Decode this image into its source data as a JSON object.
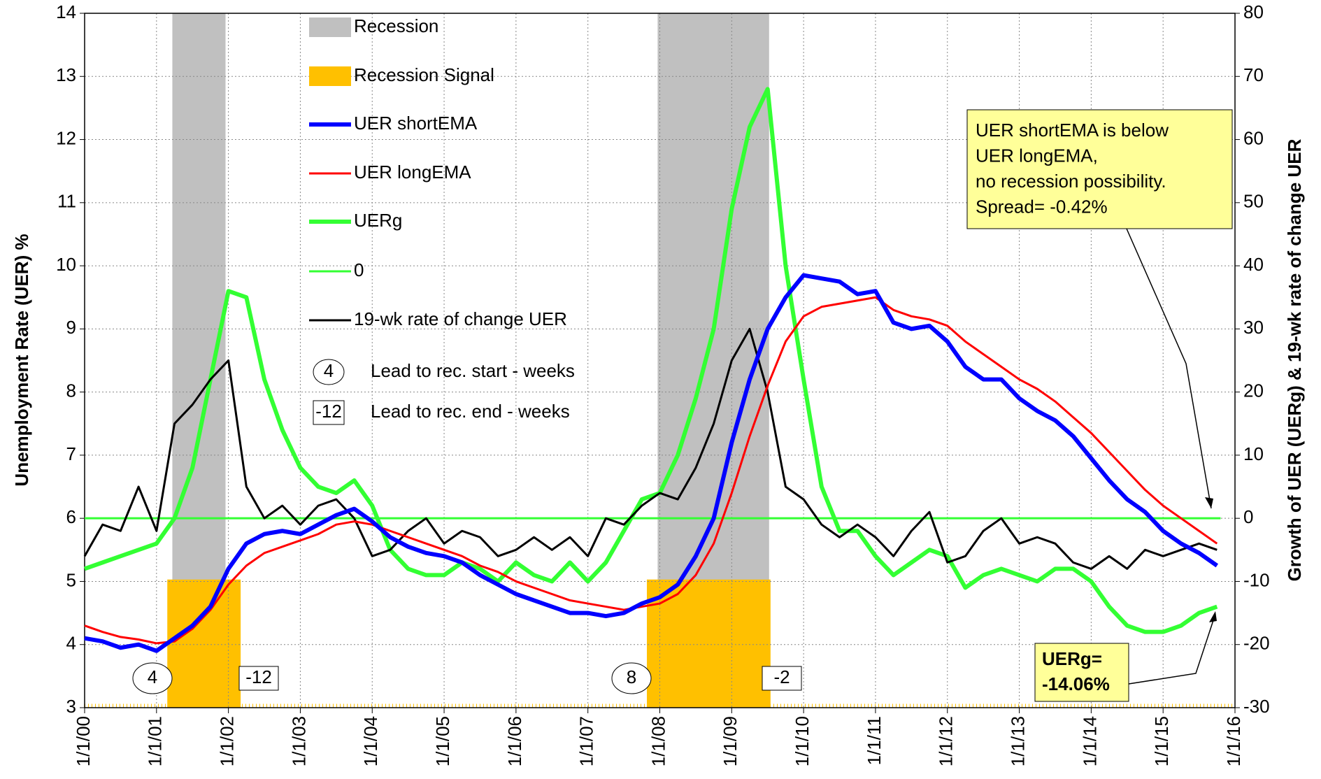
{
  "chart_data": {
    "type": "line",
    "y_label": "Unemployment Rate (UER) %",
    "y2_label": "Growth of UER (UERg) & 19-wk rate of change UER",
    "xlim": [
      2000,
      2016
    ],
    "xticks": [
      {
        "value": 2000,
        "label": "1/1/00"
      },
      {
        "value": 2001,
        "label": "1/1/01"
      },
      {
        "value": 2002,
        "label": "1/1/02"
      },
      {
        "value": 2003,
        "label": "1/1/03"
      },
      {
        "value": 2004,
        "label": "1/1/04"
      },
      {
        "value": 2005,
        "label": "1/1/05"
      },
      {
        "value": 2006,
        "label": "1/1/06"
      },
      {
        "value": 2007,
        "label": "1/1/07"
      },
      {
        "value": 2008,
        "label": "1/1/08"
      },
      {
        "value": 2009,
        "label": "1/1/09"
      },
      {
        "value": 2010,
        "label": "1/1/10"
      },
      {
        "value": 2011,
        "label": "1/1/11"
      },
      {
        "value": 2012,
        "label": "1/1/12"
      },
      {
        "value": 2013,
        "label": "1/1/13"
      },
      {
        "value": 2014,
        "label": "1/1/14"
      },
      {
        "value": 2015,
        "label": "1/1/15"
      },
      {
        "value": 2016,
        "label": "1/1/16"
      }
    ],
    "ylim": [
      3,
      14
    ],
    "yticks": [
      3,
      4,
      5,
      6,
      7,
      8,
      9,
      10,
      11,
      12,
      13,
      14
    ],
    "y2lim": [
      -30,
      80
    ],
    "y2ticks": [
      -30,
      -20,
      -10,
      0,
      10,
      20,
      30,
      40,
      50,
      60,
      70,
      80
    ],
    "grid": true,
    "recessions": {
      "name": "Recession",
      "color": "#c0c0c0",
      "periods": [
        {
          "start": 2001.22,
          "end": 2001.96
        },
        {
          "start": 2007.97,
          "end": 2009.52
        }
      ]
    },
    "recession_signal": {
      "name": "Recession Signal",
      "color": "#ffc000",
      "periods": [
        {
          "start": 2001.15,
          "end": 2002.17,
          "value": 5.03
        },
        {
          "start": 2007.82,
          "end": 2009.54,
          "value": 5.03
        }
      ]
    },
    "x": [
      2000,
      2000.25,
      2000.5,
      2000.75,
      2001,
      2001.25,
      2001.5,
      2001.75,
      2002,
      2002.25,
      2002.5,
      2002.75,
      2003,
      2003.25,
      2003.5,
      2003.75,
      2004,
      2004.25,
      2004.5,
      2004.75,
      2005,
      2005.25,
      2005.5,
      2005.75,
      2006,
      2006.25,
      2006.5,
      2006.75,
      2007,
      2007.25,
      2007.5,
      2007.75,
      2008,
      2008.25,
      2008.5,
      2008.75,
      2009,
      2009.25,
      2009.5,
      2009.75,
      2010,
      2010.25,
      2010.5,
      2010.75,
      2011,
      2011.25,
      2011.5,
      2011.75,
      2012,
      2012.25,
      2012.5,
      2012.75,
      2013,
      2013.25,
      2013.5,
      2013.75,
      2014,
      2014.25,
      2014.5,
      2014.75,
      2015,
      2015.25,
      2015.5,
      2015.75
    ],
    "series": [
      {
        "name": "UER shortEMA",
        "color": "#0000ff",
        "width": 6,
        "values": [
          4.1,
          4.05,
          3.95,
          4.0,
          3.9,
          4.1,
          4.3,
          4.6,
          5.2,
          5.6,
          5.75,
          5.8,
          5.75,
          5.9,
          6.05,
          6.15,
          5.95,
          5.7,
          5.55,
          5.45,
          5.4,
          5.3,
          5.1,
          4.95,
          4.8,
          4.7,
          4.6,
          4.5,
          4.5,
          4.45,
          4.5,
          4.65,
          4.75,
          4.95,
          5.4,
          6.0,
          7.2,
          8.2,
          9.0,
          9.5,
          9.85,
          9.8,
          9.75,
          9.55,
          9.6,
          9.1,
          9.0,
          9.05,
          8.8,
          8.4,
          8.2,
          8.2,
          7.9,
          7.7,
          7.55,
          7.3,
          6.95,
          6.6,
          6.3,
          6.1,
          5.8,
          5.6,
          5.45,
          5.25
        ]
      },
      {
        "name": "UER longEMA",
        "color": "#ff0000",
        "width": 3,
        "values": [
          4.3,
          4.2,
          4.12,
          4.08,
          4.02,
          4.05,
          4.25,
          4.55,
          4.95,
          5.25,
          5.45,
          5.55,
          5.65,
          5.75,
          5.9,
          5.95,
          5.9,
          5.8,
          5.7,
          5.6,
          5.5,
          5.4,
          5.25,
          5.15,
          5.0,
          4.9,
          4.8,
          4.7,
          4.65,
          4.6,
          4.55,
          4.6,
          4.65,
          4.8,
          5.1,
          5.6,
          6.4,
          7.3,
          8.1,
          8.8,
          9.2,
          9.35,
          9.4,
          9.45,
          9.5,
          9.3,
          9.2,
          9.15,
          9.05,
          8.8,
          8.6,
          8.4,
          8.2,
          8.05,
          7.85,
          7.6,
          7.35,
          7.05,
          6.75,
          6.45,
          6.2,
          6.0,
          5.8,
          5.6
        ]
      },
      {
        "name": "UERg",
        "color": "#33ff33",
        "width": 6,
        "axis": "y2",
        "values": [
          -8,
          -7,
          -6,
          -5,
          -4,
          0,
          8,
          22,
          36,
          35,
          22,
          14,
          8,
          5,
          4,
          6,
          2,
          -5,
          -8,
          -9,
          -9,
          -7,
          -8,
          -10,
          -7,
          -9,
          -10,
          -7,
          -10,
          -7,
          -2,
          3,
          4,
          10,
          19,
          30,
          49,
          62,
          68,
          40,
          22,
          5,
          -2,
          -2,
          -6,
          -9,
          -7,
          -5,
          -6,
          -11,
          -9,
          -8,
          -9,
          -10,
          -8,
          -8,
          -10,
          -14,
          -17,
          -18,
          -18,
          -17,
          -15,
          -14
        ]
      },
      {
        "name": "0",
        "color": "#33ff33",
        "width": 3,
        "axis": "y2",
        "x": [
          2000,
          2015.8
        ],
        "values": [
          0,
          0
        ]
      },
      {
        "name": "19-wk rate of change UER",
        "color": "#000000",
        "width": 3,
        "axis": "y2",
        "values": [
          -6,
          -1,
          -2,
          5,
          -2,
          15,
          18,
          22,
          25,
          5,
          0,
          2,
          -1,
          2,
          3,
          0,
          -6,
          -5,
          -2,
          0,
          -4,
          -2,
          -3,
          -6,
          -5,
          -3,
          -5,
          -3,
          -6,
          0,
          -1,
          2,
          4,
          3,
          8,
          15,
          25,
          30,
          20,
          5,
          3,
          -1,
          -3,
          -1,
          -3,
          -6,
          -2,
          1,
          -7,
          -6,
          -2,
          0,
          -4,
          -3,
          -4,
          -7,
          -8,
          -6,
          -8,
          -5,
          -6,
          -5,
          -4,
          -5
        ]
      }
    ],
    "lead_legend": [
      {
        "symbol": "4",
        "text": "Lead to rec. start - weeks"
      },
      {
        "symbol": "-12",
        "text": "Lead to rec. end - weeks"
      }
    ],
    "lead_start": [
      "4",
      "8"
    ],
    "lead_end": [
      "-12",
      "-2"
    ],
    "callouts": [
      {
        "lines": [
          "UER shortEMA  is below",
          "UER longEMA,",
          "no recession possibility.",
          "Spread= -0.42%"
        ]
      },
      {
        "lines": [
          "UERg=",
          "-14.06%"
        ]
      }
    ]
  }
}
